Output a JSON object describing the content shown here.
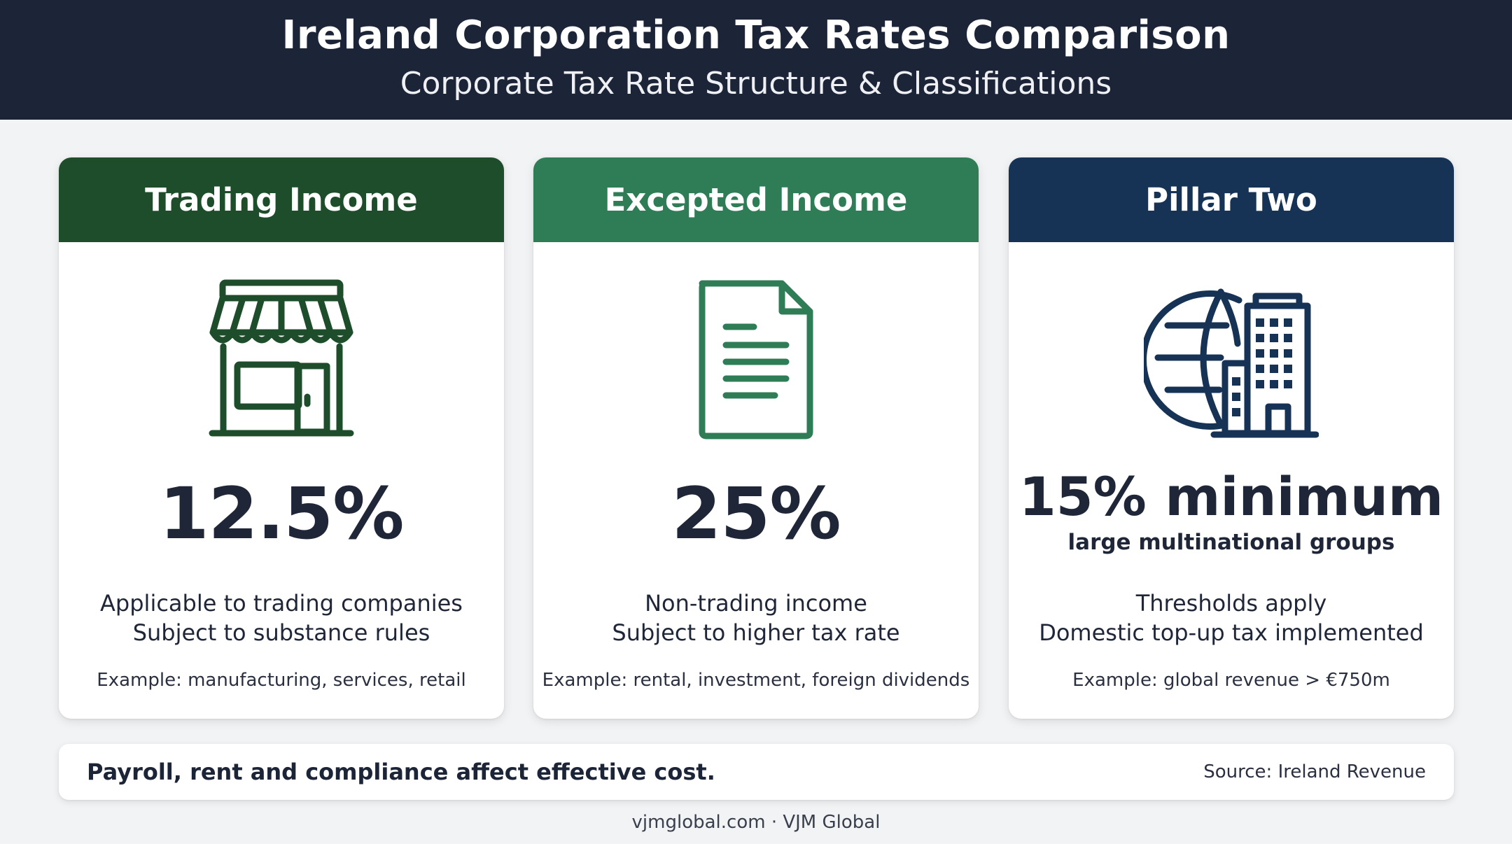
{
  "header": {
    "title": "Ireland Corporation Tax Rates Comparison",
    "subtitle": "Corporate Tax Rate Structure & Classifications"
  },
  "cards": [
    {
      "title": "Trading Income",
      "icon": "storefront-icon",
      "color": "#1d4d2a",
      "rate": "12.5%",
      "lines": [
        "Applicable to trading companies",
        "Subject to substance rules"
      ],
      "example": "Example: manufacturing, services, retail"
    },
    {
      "title": "Excepted Income",
      "icon": "document-icon",
      "color": "#2e7d56",
      "rate": "25%",
      "lines": [
        "Non-trading income",
        "Subject to higher tax rate"
      ],
      "example": "Example: rental, investment, foreign dividends"
    },
    {
      "title": "Pillar Two",
      "icon": "globe-building-icon",
      "color": "#163356",
      "rate": "15% minimum",
      "rate_note": "large multinational groups",
      "lines": [
        "Thresholds apply",
        "Domestic top-up tax implemented"
      ],
      "example": "Example: global revenue > €750m"
    }
  ],
  "footer": {
    "note": "Payroll, rent and compliance affect effective cost.",
    "source": "Source: Ireland Revenue"
  },
  "credit": "vjmglobal.com · VJM Global"
}
